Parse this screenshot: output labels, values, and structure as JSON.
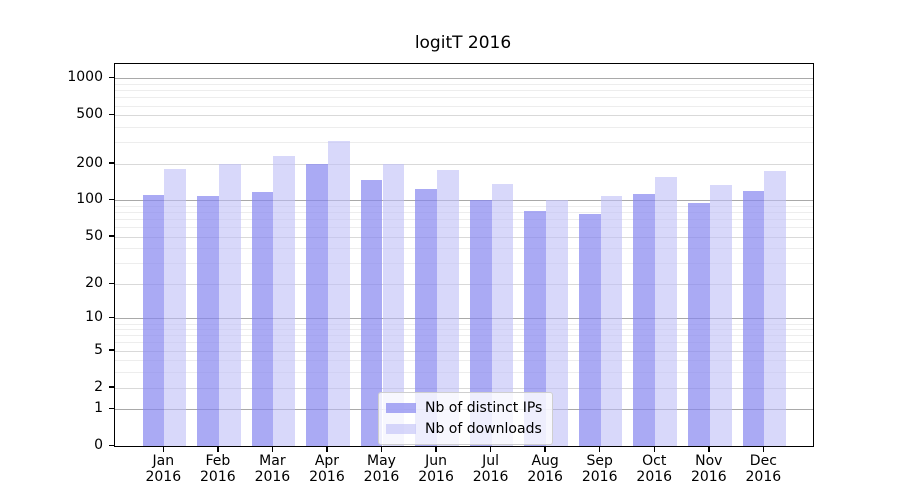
{
  "title": "logitT 2016",
  "chart_data": {
    "type": "bar",
    "title": "logitT 2016",
    "categories": [
      "Jan",
      "Feb",
      "Mar",
      "Apr",
      "May",
      "Jun",
      "Jul",
      "Aug",
      "Sep",
      "Oct",
      "Nov",
      "Dec"
    ],
    "category_year": "2016",
    "series": [
      {
        "name": "Nb of distinct IPs",
        "color": "rgba(134,134,240,0.7)",
        "color_hex": "#aaaaf5",
        "values": [
          112,
          108,
          118,
          200,
          148,
          124,
          100,
          82,
          78,
          113,
          96,
          120
        ]
      },
      {
        "name": "Nb of downloads",
        "color": "rgba(190,190,247,0.6)",
        "color_hex": "#d8d8f9",
        "values": [
          183,
          198,
          233,
          310,
          198,
          178,
          137,
          100,
          108,
          155,
          135,
          174
        ]
      }
    ],
    "y_ticks": [
      0,
      1,
      2,
      5,
      10,
      20,
      50,
      100,
      200,
      500,
      1000
    ],
    "y_scale": "log1p",
    "ylim": [
      0,
      1265
    ],
    "grid": "on",
    "legend_position": "lower center",
    "axis_color": "#000000",
    "grid_color_major": "#a9a9a9",
    "grid_color_minor": "#ededed"
  }
}
